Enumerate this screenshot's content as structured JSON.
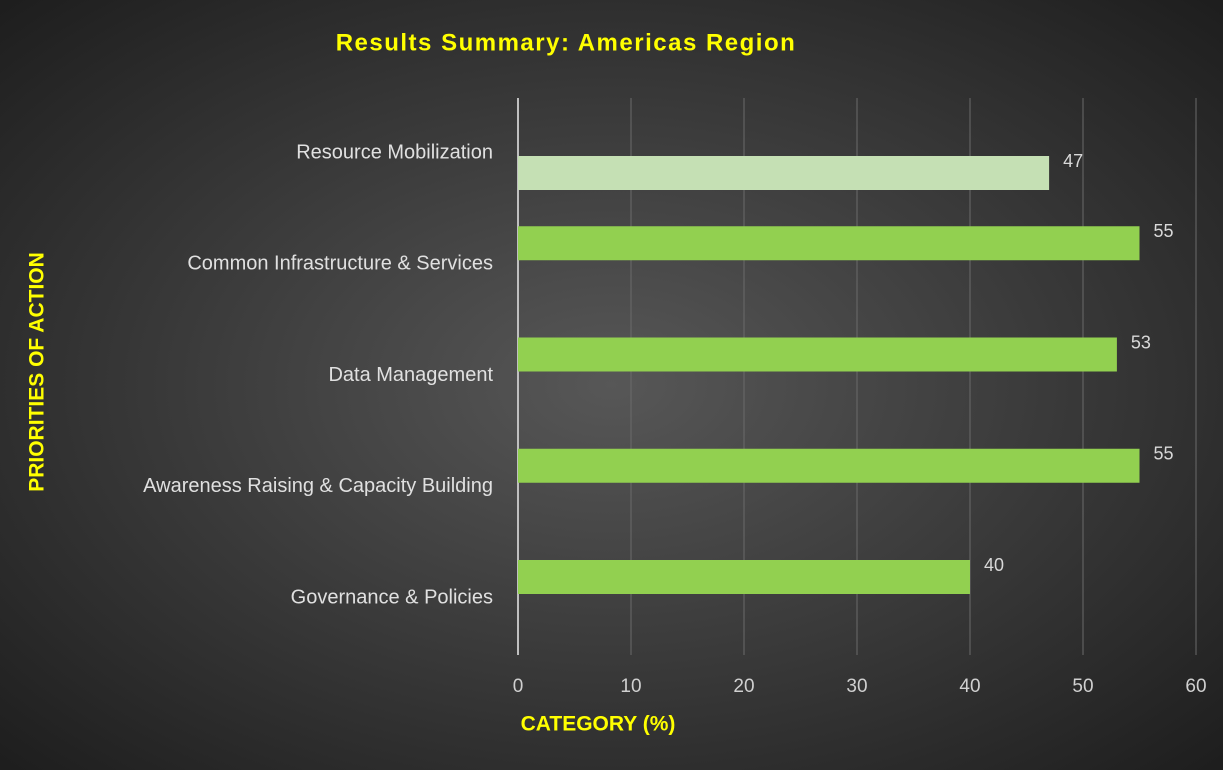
{
  "chart_data": {
    "type": "bar",
    "orientation": "horizontal",
    "title": "Results Summary: Americas Region",
    "x_label": "CATEGORY (%)",
    "y_label": "PRIORITIES OF ACTION",
    "categories": [
      "Resource Mobilization",
      "Common Infrastructure & Services",
      "Data Management",
      "Awareness Raising & Capacity Building",
      "Governance & Policies"
    ],
    "values": [
      47,
      55,
      53,
      55,
      40
    ],
    "colors": [
      "#c5e0b4",
      "#92d050",
      "#92d050",
      "#92d050",
      "#92d050"
    ],
    "xlim": [
      0,
      60
    ],
    "xticks": [
      0,
      10,
      20,
      30,
      40,
      50,
      60
    ],
    "grid": true
  }
}
